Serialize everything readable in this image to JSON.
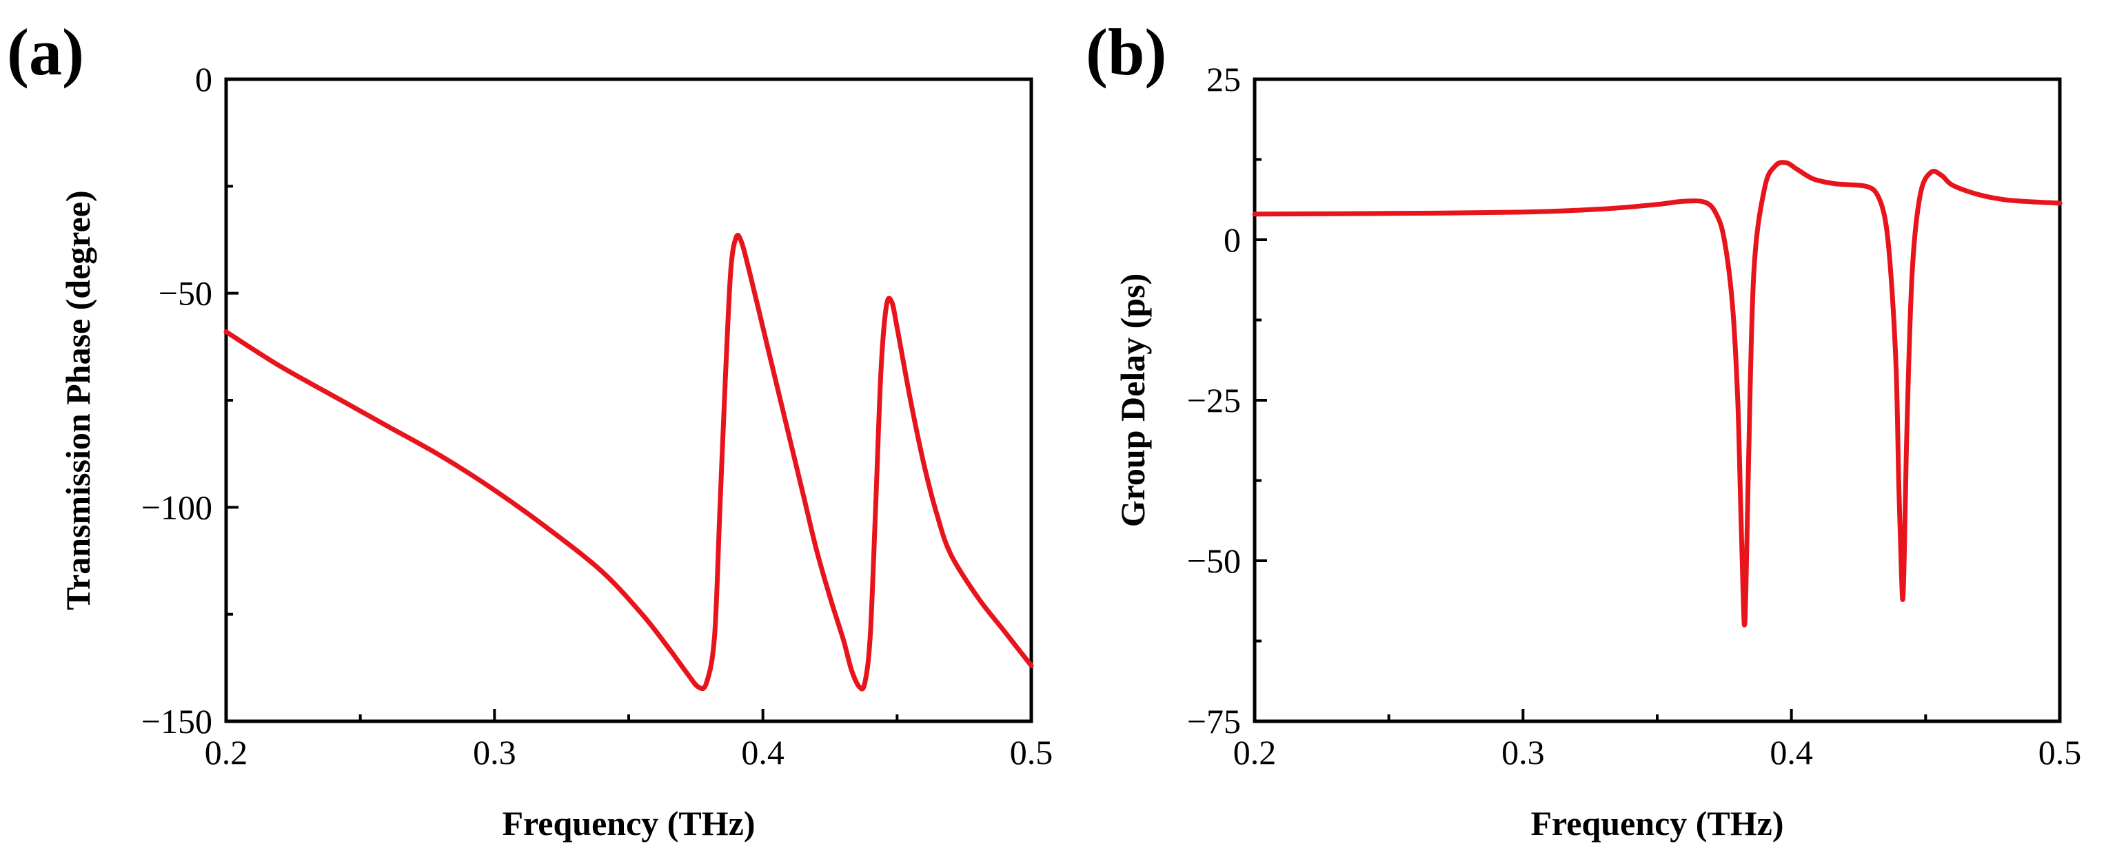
{
  "chart_data": [
    {
      "panel": "(a)",
      "type": "line",
      "xlabel": "Frequency (THz)",
      "ylabel": "Transmission Phase (degree)",
      "xlim": [
        0.2,
        0.5
      ],
      "ylim": [
        -150,
        0
      ],
      "xticks": [
        0.2,
        0.3,
        0.4,
        0.5
      ],
      "xtick_labels": [
        "0.2",
        "0.3",
        "0.4",
        "0.5"
      ],
      "yticks": [
        -150,
        -100,
        -50,
        0
      ],
      "ytick_labels": [
        "−150",
        "−100",
        "−50",
        "0"
      ],
      "line_color": "#e8141c",
      "series": [
        {
          "name": "Transmission Phase",
          "x": [
            0.2,
            0.22,
            0.24,
            0.26,
            0.28,
            0.3,
            0.32,
            0.34,
            0.355,
            0.365,
            0.372,
            0.376,
            0.379,
            0.382,
            0.384,
            0.386,
            0.388,
            0.39,
            0.392,
            0.395,
            0.4,
            0.405,
            0.41,
            0.415,
            0.42,
            0.425,
            0.43,
            0.433,
            0.436,
            0.438,
            0.44,
            0.442,
            0.444,
            0.446,
            0.448,
            0.45,
            0.455,
            0.46,
            0.465,
            0.47,
            0.48,
            0.49,
            0.5
          ],
          "y": [
            -59,
            -67,
            -74,
            -81,
            -88,
            -96,
            -105,
            -115,
            -125,
            -133,
            -139,
            -142,
            -141,
            -130,
            -100,
            -70,
            -45,
            -37,
            -38,
            -45,
            -58,
            -71,
            -84,
            -97,
            -110,
            -121,
            -131,
            -138,
            -142,
            -141,
            -130,
            -100,
            -68,
            -53,
            -52,
            -58,
            -75,
            -90,
            -102,
            -111,
            -121,
            -129,
            -137
          ]
        }
      ]
    },
    {
      "panel": "(b)",
      "type": "line",
      "xlabel": "Frequency (THz)",
      "ylabel": "Group Delay (ps)",
      "xlim": [
        0.2,
        0.5
      ],
      "ylim": [
        -75,
        25
      ],
      "xticks": [
        0.2,
        0.3,
        0.4,
        0.5
      ],
      "xtick_labels": [
        "0.2",
        "0.3",
        "0.4",
        "0.5"
      ],
      "yticks": [
        -75,
        -50,
        -25,
        0,
        25
      ],
      "ytick_labels": [
        "−75",
        "−50",
        "−25",
        "0",
        "25"
      ],
      "line_color": "#e8141c",
      "series": [
        {
          "name": "Group Delay",
          "x": [
            0.2,
            0.25,
            0.3,
            0.33,
            0.35,
            0.36,
            0.368,
            0.372,
            0.375,
            0.378,
            0.38,
            0.381,
            0.382,
            0.3825,
            0.383,
            0.384,
            0.386,
            0.39,
            0.394,
            0.398,
            0.402,
            0.408,
            0.415,
            0.42,
            0.428,
            0.432,
            0.435,
            0.437,
            0.439,
            0.44,
            0.441,
            0.4415,
            0.442,
            0.443,
            0.445,
            0.448,
            0.452,
            0.456,
            0.46,
            0.47,
            0.48,
            0.49,
            0.5
          ],
          "y": [
            4,
            4.1,
            4.3,
            4.8,
            5.5,
            6,
            5.8,
            4,
            0,
            -10,
            -25,
            -40,
            -55,
            -60,
            -55,
            -35,
            -5,
            8,
            11.5,
            12,
            11,
            9.5,
            8.8,
            8.6,
            8.3,
            7,
            3,
            -5,
            -20,
            -38,
            -52,
            -56,
            -50,
            -30,
            -5,
            7,
            10.5,
            10,
            8.5,
            7,
            6.2,
            5.9,
            5.7
          ]
        }
      ]
    }
  ]
}
